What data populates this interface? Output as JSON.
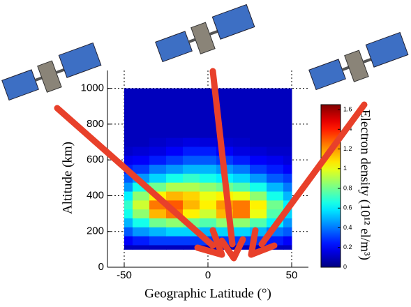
{
  "chart_data": {
    "type": "contour",
    "x_label": "Geographic Latitude (°)",
    "y_label": "Altitude (km)",
    "colorbar_label": "Electron density (10¹² el/m³)",
    "x": [
      -50,
      -40,
      -30,
      -20,
      -10,
      0,
      10,
      20,
      30,
      40,
      50
    ],
    "y": [
      100,
      150,
      200,
      250,
      300,
      350,
      400,
      450,
      500,
      550,
      600,
      650,
      700,
      750,
      800,
      850,
      900,
      950,
      1000
    ],
    "z": [
      [
        0.1,
        0.1,
        0.1,
        0.1,
        0.1,
        0.1,
        0.1,
        0.1,
        0.1,
        0.1,
        0.1
      ],
      [
        0.2,
        0.25,
        0.3,
        0.3,
        0.3,
        0.3,
        0.3,
        0.3,
        0.3,
        0.25,
        0.2
      ],
      [
        0.35,
        0.45,
        0.5,
        0.55,
        0.55,
        0.5,
        0.55,
        0.55,
        0.5,
        0.4,
        0.35
      ],
      [
        0.5,
        0.65,
        0.8,
        0.85,
        0.8,
        0.75,
        0.85,
        0.85,
        0.75,
        0.6,
        0.45
      ],
      [
        0.65,
        0.85,
        1.15,
        1.25,
        1.05,
        0.95,
        1.15,
        1.25,
        1.0,
        0.75,
        0.55
      ],
      [
        0.7,
        0.95,
        1.25,
        1.3,
        1.15,
        1.05,
        1.2,
        1.25,
        1.05,
        0.8,
        0.6
      ],
      [
        0.6,
        0.85,
        1.05,
        1.15,
        1.1,
        1.0,
        1.05,
        1.0,
        0.85,
        0.65,
        0.5
      ],
      [
        0.45,
        0.65,
        0.8,
        0.9,
        0.9,
        0.85,
        0.8,
        0.75,
        0.65,
        0.5,
        0.4
      ],
      [
        0.35,
        0.45,
        0.55,
        0.65,
        0.7,
        0.65,
        0.6,
        0.55,
        0.45,
        0.35,
        0.3
      ],
      [
        0.25,
        0.3,
        0.4,
        0.45,
        0.5,
        0.5,
        0.45,
        0.4,
        0.3,
        0.25,
        0.2
      ],
      [
        0.18,
        0.2,
        0.25,
        0.3,
        0.35,
        0.35,
        0.3,
        0.25,
        0.2,
        0.18,
        0.15
      ],
      [
        0.12,
        0.14,
        0.16,
        0.2,
        0.25,
        0.25,
        0.2,
        0.16,
        0.14,
        0.12,
        0.12
      ],
      [
        0.1,
        0.1,
        0.12,
        0.14,
        0.16,
        0.15,
        0.13,
        0.12,
        0.1,
        0.1,
        0.1
      ],
      [
        0.1,
        0.1,
        0.1,
        0.1,
        0.1,
        0.1,
        0.1,
        0.1,
        0.1,
        0.1,
        0.1
      ],
      [
        0.1,
        0.1,
        0.1,
        0.1,
        0.1,
        0.1,
        0.1,
        0.1,
        0.1,
        0.1,
        0.1
      ],
      [
        0.1,
        0.1,
        0.1,
        0.1,
        0.1,
        0.1,
        0.1,
        0.1,
        0.1,
        0.1,
        0.1
      ],
      [
        0.1,
        0.1,
        0.1,
        0.1,
        0.1,
        0.1,
        0.1,
        0.1,
        0.1,
        0.1,
        0.1
      ],
      [
        0.1,
        0.1,
        0.1,
        0.1,
        0.1,
        0.1,
        0.1,
        0.1,
        0.1,
        0.1,
        0.1
      ],
      [
        0.1,
        0.1,
        0.1,
        0.1,
        0.1,
        0.1,
        0.1,
        0.1,
        0.1,
        0.1,
        0.1
      ]
    ],
    "xlim": [
      -60,
      60
    ],
    "xticks": [
      -50,
      0,
      50
    ],
    "ylim": [
      0,
      1100
    ],
    "yticks": [
      0,
      200,
      400,
      600,
      800,
      1000
    ],
    "clim": [
      0,
      1.65
    ],
    "cticks": [
      0,
      0.2,
      0.4,
      0.6,
      0.8,
      1,
      1.2,
      1.4,
      1.6
    ],
    "colormap": "jet",
    "grid": true
  }
}
